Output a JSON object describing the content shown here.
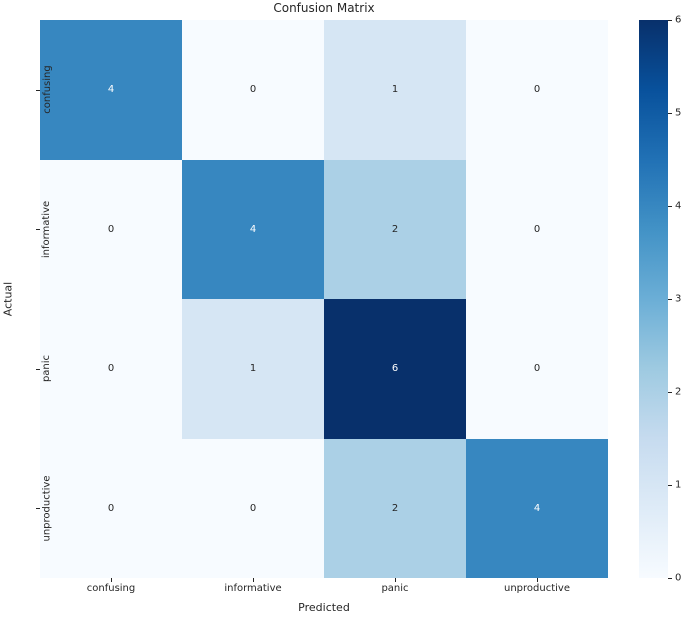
{
  "chart_data": {
    "type": "heatmap",
    "title": "Confusion Matrix",
    "xlabel": "Predicted",
    "ylabel": "Actual",
    "x_categories": [
      "confusing",
      "informative",
      "panic",
      "unproductive"
    ],
    "y_categories": [
      "confusing",
      "informative",
      "panic",
      "unproductive"
    ],
    "matrix": [
      [
        4,
        0,
        1,
        0
      ],
      [
        0,
        4,
        2,
        0
      ],
      [
        0,
        1,
        6,
        0
      ],
      [
        0,
        0,
        2,
        4
      ]
    ],
    "colormap": "Blues",
    "vmin": 0,
    "vmax": 6,
    "colorbar_ticks": [
      0,
      1,
      2,
      3,
      4,
      5,
      6
    ],
    "legend_position": "right",
    "grid": false,
    "value_colors": {
      "0": "#f7fbff",
      "1": "#d6e6f4",
      "2": "#abd0e6",
      "4": "#3787c0",
      "6": "#08306b"
    },
    "value_text_colors": {
      "0": "#262626",
      "1": "#262626",
      "2": "#262626",
      "4": "#ffffff",
      "6": "#ffffff"
    },
    "colormap_stops": [
      "#f7fbff",
      "#deebf7",
      "#c6dbef",
      "#9ecae1",
      "#6baed6",
      "#4292c6",
      "#2171b5",
      "#08519c",
      "#08306b"
    ],
    "tick_color": "#262626"
  }
}
